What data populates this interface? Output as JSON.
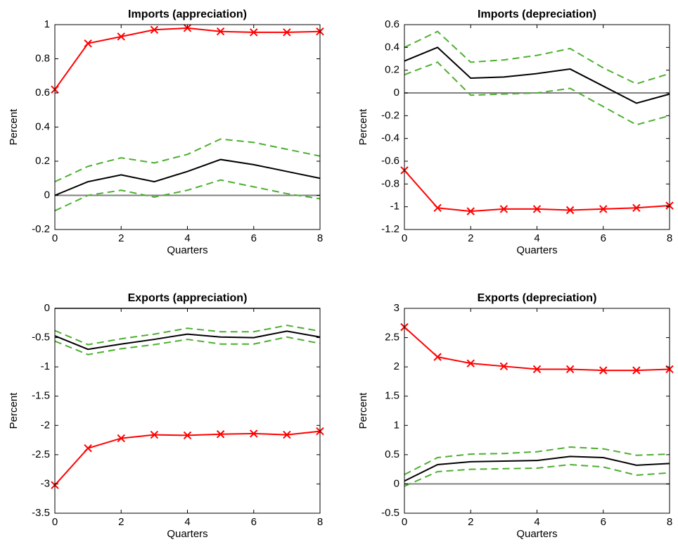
{
  "chart_data": [
    {
      "type": "line",
      "title": "Imports (appreciation)",
      "xlabel": "Quarters",
      "ylabel": "Percent",
      "x": [
        0,
        1,
        2,
        3,
        4,
        5,
        6,
        7,
        8
      ],
      "xlim": [
        0,
        8
      ],
      "xticks": [
        0,
        2,
        4,
        6,
        8
      ],
      "ylim": [
        -0.2,
        1
      ],
      "yticks": [
        -0.2,
        0,
        0.2,
        0.4,
        0.6,
        0.8,
        1
      ],
      "hline": {
        "value": 0,
        "color": "#808080"
      },
      "series": [
        {
          "color": "#ff0000",
          "marker": "x",
          "values": [
            0.62,
            0.89,
            0.93,
            0.97,
            0.98,
            0.96,
            0.955,
            0.955,
            0.96
          ]
        },
        {
          "color": "#000000",
          "values": [
            0,
            0.08,
            0.12,
            0.08,
            0.14,
            0.21,
            0.18,
            0.14,
            0.1
          ]
        },
        {
          "color": "#4daf2f",
          "dashed": true,
          "values": [
            0.08,
            0.17,
            0.22,
            0.19,
            0.24,
            0.33,
            0.31,
            0.27,
            0.23
          ]
        },
        {
          "color": "#4daf2f",
          "dashed": true,
          "values": [
            -0.09,
            0,
            0.03,
            -0.01,
            0.03,
            0.09,
            0.05,
            0.01,
            -0.02
          ]
        }
      ]
    },
    {
      "type": "line",
      "title": "Imports (depreciation)",
      "xlabel": "Quarters",
      "ylabel": "Percent",
      "x": [
        0,
        1,
        2,
        3,
        4,
        5,
        6,
        7,
        8
      ],
      "xlim": [
        0,
        8
      ],
      "xticks": [
        0,
        2,
        4,
        6,
        8
      ],
      "ylim": [
        -1.2,
        0.6
      ],
      "yticks": [
        -1.2,
        -1,
        -0.8,
        -0.6,
        -0.4,
        -0.2,
        0,
        0.2,
        0.4,
        0.6
      ],
      "hline": {
        "value": 0,
        "color": "#808080"
      },
      "series": [
        {
          "color": "#ff0000",
          "marker": "x",
          "values": [
            -0.68,
            -1.01,
            -1.04,
            -1.02,
            -1.02,
            -1.03,
            -1.02,
            -1.01,
            -0.99
          ]
        },
        {
          "color": "#000000",
          "values": [
            0.28,
            0.4,
            0.13,
            0.14,
            0.17,
            0.21,
            0.06,
            -0.09,
            -0.01
          ]
        },
        {
          "color": "#4daf2f",
          "dashed": true,
          "values": [
            0.4,
            0.54,
            0.27,
            0.29,
            0.33,
            0.39,
            0.22,
            0.08,
            0.17
          ]
        },
        {
          "color": "#4daf2f",
          "dashed": true,
          "values": [
            0.16,
            0.27,
            -0.02,
            -0.01,
            0.0,
            0.04,
            -0.12,
            -0.28,
            -0.2
          ]
        }
      ]
    },
    {
      "type": "line",
      "title": "Exports (appreciation)",
      "xlabel": "Quarters",
      "ylabel": "Percent",
      "x": [
        0,
        1,
        2,
        3,
        4,
        5,
        6,
        7,
        8
      ],
      "xlim": [
        0,
        8
      ],
      "xticks": [
        0,
        2,
        4,
        6,
        8
      ],
      "ylim": [
        -3.5,
        0
      ],
      "yticks": [
        -3.5,
        -3,
        -2.5,
        -2,
        -1.5,
        -1,
        -0.5,
        0
      ],
      "hline": {
        "value": 0,
        "color": "#808080"
      },
      "series": [
        {
          "color": "#ff0000",
          "marker": "x",
          "values": [
            -3.02,
            -2.39,
            -2.22,
            -2.16,
            -2.17,
            -2.15,
            -2.14,
            -2.16,
            -2.1
          ]
        },
        {
          "color": "#000000",
          "values": [
            -0.47,
            -0.7,
            -0.61,
            -0.53,
            -0.44,
            -0.49,
            -0.5,
            -0.39,
            -0.49
          ]
        },
        {
          "color": "#4daf2f",
          "dashed": true,
          "values": [
            -0.38,
            -0.62,
            -0.52,
            -0.44,
            -0.34,
            -0.4,
            -0.4,
            -0.29,
            -0.39
          ]
        },
        {
          "color": "#4daf2f",
          "dashed": true,
          "values": [
            -0.56,
            -0.79,
            -0.69,
            -0.62,
            -0.53,
            -0.61,
            -0.61,
            -0.49,
            -0.6
          ]
        }
      ]
    },
    {
      "type": "line",
      "title": "Exports (depreciation)",
      "xlabel": "Quarters",
      "ylabel": "Percent",
      "x": [
        0,
        1,
        2,
        3,
        4,
        5,
        6,
        7,
        8
      ],
      "xlim": [
        0,
        8
      ],
      "xticks": [
        0,
        2,
        4,
        6,
        8
      ],
      "ylim": [
        -0.5,
        3
      ],
      "yticks": [
        -0.5,
        0,
        0.5,
        1,
        1.5,
        2,
        2.5,
        3
      ],
      "hline": {
        "value": 0,
        "color": "#808080"
      },
      "series": [
        {
          "color": "#ff0000",
          "marker": "x",
          "values": [
            2.68,
            2.17,
            2.06,
            2.01,
            1.96,
            1.96,
            1.94,
            1.94,
            1.96
          ]
        },
        {
          "color": "#000000",
          "values": [
            0.05,
            0.33,
            0.38,
            0.39,
            0.4,
            0.47,
            0.45,
            0.32,
            0.35
          ]
        },
        {
          "color": "#4daf2f",
          "dashed": true,
          "values": [
            0.16,
            0.45,
            0.51,
            0.52,
            0.55,
            0.63,
            0.6,
            0.49,
            0.51
          ]
        },
        {
          "color": "#4daf2f",
          "dashed": true,
          "values": [
            -0.04,
            0.21,
            0.25,
            0.26,
            0.27,
            0.33,
            0.29,
            0.15,
            0.19
          ]
        }
      ]
    }
  ]
}
